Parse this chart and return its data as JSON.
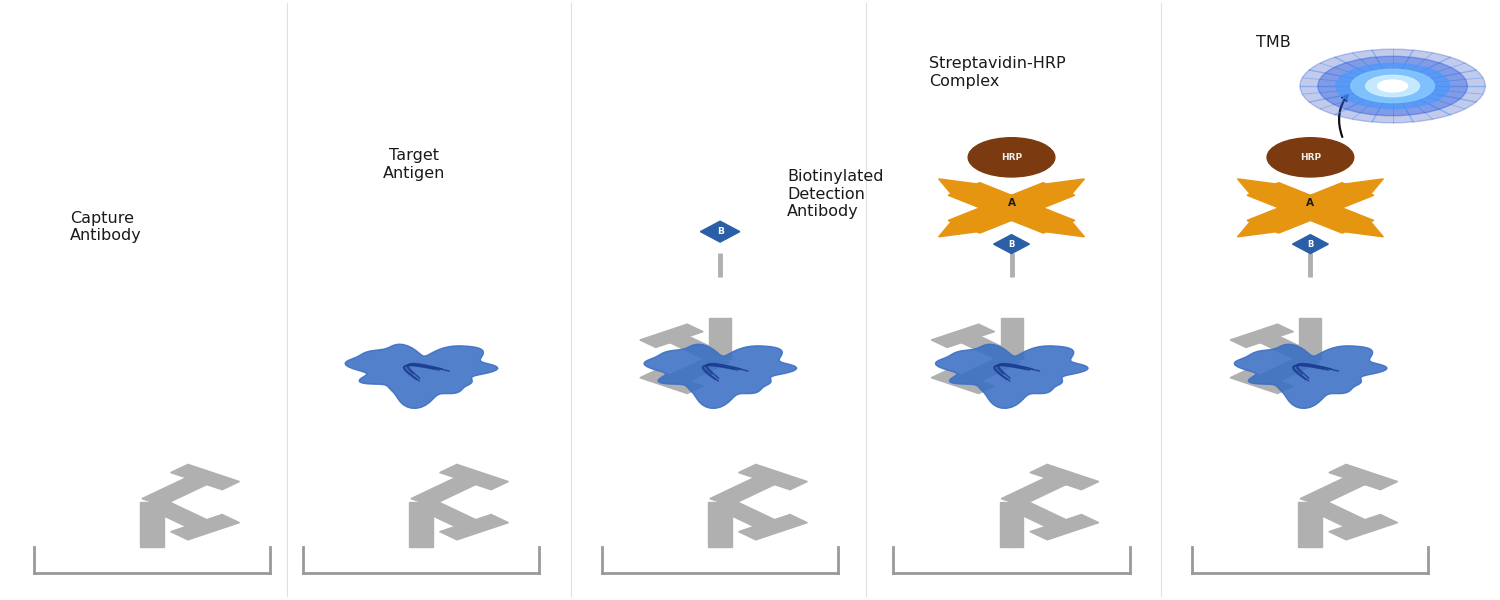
{
  "bg_color": "#ffffff",
  "fig_width": 15.0,
  "fig_height": 6.0,
  "dpi": 100,
  "antibody_color": "#b0b0b0",
  "antigen_color": "#3a6fc4",
  "biotin_color": "#2a5fa8",
  "streptavidin_color": "#e69510",
  "hrp_color": "#7B3A10",
  "tmb_glow_inner": "#ffffff",
  "tmb_glow_mid": "#88ddff",
  "tmb_glow_outer": "#2255cc",
  "well_color": "#999999",
  "text_color": "#1a1a1a",
  "label_fontsize": 11.5,
  "panels": [
    0.1,
    0.28,
    0.48,
    0.675,
    0.875
  ],
  "panel_labels": [
    "Capture\nAntibody",
    "Target\nAntigen",
    "Biotinylated\nDetection\nAntibody",
    "Streptavidin-HRP\nComplex",
    "TMB"
  ]
}
